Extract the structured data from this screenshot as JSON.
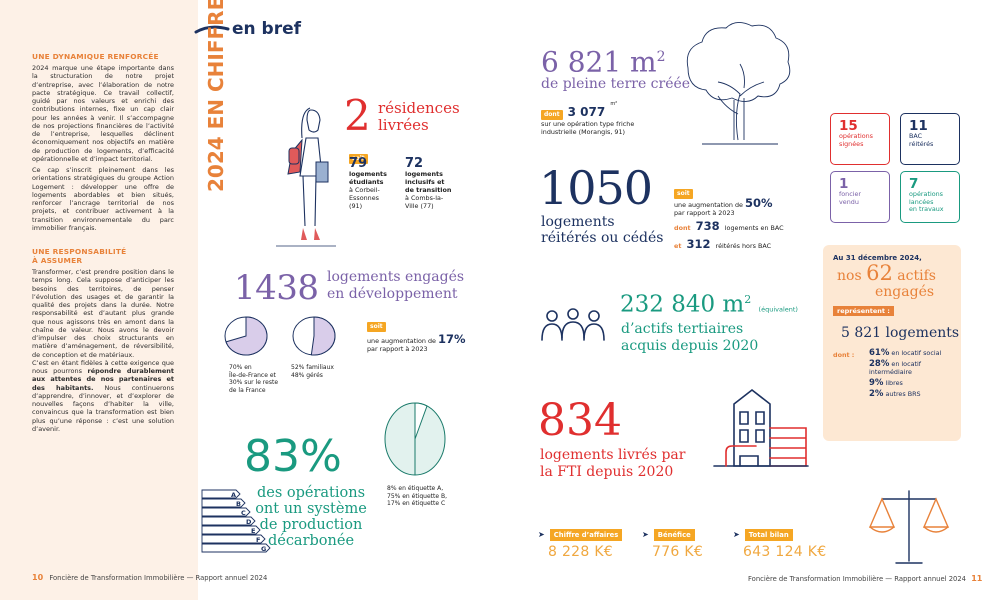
{
  "left": {
    "title1": "UNE DYNAMIQUE RENFORCÉE",
    "para1": "2024 marque une étape importante dans la structuration de notre projet d’entreprise, avec l’élaboration de notre pacte stratégique. Ce travail collectif, guidé par nos valeurs et enrichi des contributions internes, fixe un cap clair pour les années à venir. Il s’accompagne de nos projections financières de l’activité de l’entreprise, lesquelles déclinent économiquement nos objectifs en matière de production de logements, d’efficacité opérationnelle et d’impact territorial.",
    "para2": "Ce cap s’inscrit pleinement dans les orientations stratégiques du groupe Action Logement : développer une offre de logements abordables et bien situés, renforcer l’ancrage territorial de nos projets, et contribuer activement à la transition environnementale du parc immobilier français.",
    "title2a": "UNE RESPONSABILITÉ",
    "title2b": "À ASSUMER",
    "para3a": "Transformer, c’est prendre position dans le temps long. Cela suppose d’anticiper les besoins des territoires, de penser l’évolution des usages et de garantir la qualité des projets dans la durée. Notre responsabilité est d’autant plus grande que nous agissons très en amont dans la chaîne de valeur. Nous avons le devoir d’impulser des choix structurants en matière d’aménagement, de réversibilité, de conception et de matériaux.",
    "para3b_pre": "C’est en étant fidèles à cette exigence que nous pourrons ",
    "para3b_bold": "répondre durablement aux attentes de nos partenaires et des habitants.",
    "para3b_post": " Nous continuerons d’apprendre, d’innover, et d’explorer de nouvelles façons d’habiter la ville, convaincus que la transformation est bien plus qu’une réponse : c’est une solution d’avenir.",
    "page_num": "10",
    "footer": "Foncière de Transformation Immobilière — Rapport annuel 2024"
  },
  "header": {
    "en_bref": "en bref",
    "year": "2024",
    "en_chiffres": "EN CHIFFRES"
  },
  "residences": {
    "num": "2",
    "label1": "résidences",
    "label2": "livrées",
    "soit": "soit",
    "a_num": "79",
    "a_text1": "logements",
    "a_text2": "étudiants",
    "a_text3": "à Corbeil-",
    "a_text4": "Essonnes",
    "a_text5": "(91)",
    "b_num": "72",
    "b_text1": "logements",
    "b_text2": "inclusifs et",
    "b_text3": "de transition",
    "b_text4": "à Combs-la-",
    "b_text5": "Ville (77)"
  },
  "engages": {
    "num": "1438",
    "label1": "logements engagés",
    "label2": "en développement",
    "pie1_l1": "70% en",
    "pie1_l2": "Île-de-France et",
    "pie1_l3": "30% sur le reste",
    "pie1_l4": "de la France",
    "pie2_l1": "52% familiaux",
    "pie2_l2": "48% gérés",
    "soit": "soit",
    "aug_pre": "une augmentation de",
    "aug_pct": "17%",
    "aug_post": "par rapport à 2023",
    "pie1_share": 0.7,
    "pie2_share": 0.52
  },
  "decarb": {
    "pct": "83%",
    "l1": "des opérations",
    "l2": "ont un système",
    "l3": "de production",
    "l4": "décarbonée",
    "p1": "8% en étiquette A,",
    "p2": "75% en étiquette B,",
    "p3": "17% en étiquette C",
    "letters": [
      "A",
      "B",
      "C",
      "D",
      "E",
      "F",
      "G"
    ]
  },
  "pleine_terre": {
    "num": "6 821 m",
    "sup": "2",
    "label": "de pleine terre créée",
    "dont": "dont",
    "sub_num": "3 077",
    "sub_sup": "m²",
    "sub_l1": "sur une opération type friche",
    "sub_l2": "industrielle",
    "sub_l2b": "(Morangis, 91)"
  },
  "boxes": [
    {
      "num": "15",
      "l1": "opérations",
      "l2": "signées",
      "color": "#e02f2f"
    },
    {
      "num": "11",
      "l1": "BAC",
      "l2": "réitérés",
      "color": "#1d3260"
    },
    {
      "num": "1",
      "l1": "foncier",
      "l2": "vendu",
      "color": "#7b62a8"
    },
    {
      "num": "7",
      "l1": "opérations",
      "l2": "lancées",
      "l3": "en travaux",
      "color": "#1a9a80"
    }
  ],
  "reiteres": {
    "num": "1050",
    "l1": "logements",
    "l2": "réitérés ou cédés",
    "soit": "soit",
    "aug_pre": "une augmentation de",
    "aug_pct": "50%",
    "aug_post": "par rapport à 2023",
    "dont": "dont",
    "bac_num": "738",
    "bac_text": "logements en BAC",
    "et": "et",
    "hors_num": "312",
    "hors_text": "réitérés hors BAC"
  },
  "tertiaires": {
    "num": "232 840 m",
    "sup": "2",
    "equiv": "(équivalent)",
    "l1": "d’actifs tertiaires",
    "l2": "acquis depuis 2020"
  },
  "actifs": {
    "date": "Au 31 décembre 2024,",
    "pre": "nos",
    "num": "62",
    "post": "actifs",
    "l2": "engagés",
    "rep": "représentent :",
    "logements": "5 821 logements",
    "dont": "dont :",
    "items": [
      {
        "p": "61%",
        "t": "en locatif social"
      },
      {
        "p": "28%",
        "t": "en locatif intermédiaire"
      },
      {
        "p": "9%",
        "t": "libres"
      },
      {
        "p": "2%",
        "t": "autres BRS"
      }
    ]
  },
  "fti": {
    "num": "834",
    "l1": "logements livrés par",
    "l2": "la FTI depuis 2020"
  },
  "finance": [
    {
      "label": "Chiffre d’affaires",
      "value": "8 228 K€"
    },
    {
      "label": "Bénéfice",
      "value": "776 K€"
    },
    {
      "label": "Total bilan",
      "value": "643 124 K€"
    }
  ],
  "right_footer": "Foncière de Transformation Immobilière — Rapport annuel 2024",
  "right_page": "11"
}
